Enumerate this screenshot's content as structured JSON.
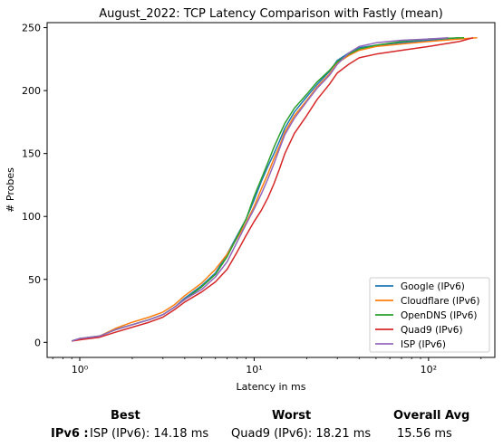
{
  "chart_data": {
    "type": "line",
    "title": "August_2022: TCP Latency Comparison with Fastly (mean)",
    "xlabel": "Latency in ms",
    "ylabel": "# Probes",
    "xscale": "log",
    "xlim": [
      0.65,
      240
    ],
    "ylim": [
      -12,
      254
    ],
    "xticks": [
      {
        "value": 1,
        "label": "10⁰"
      },
      {
        "value": 10,
        "label": "10¹"
      },
      {
        "value": 100,
        "label": "10²"
      }
    ],
    "yticks": [
      0,
      50,
      100,
      150,
      200,
      250
    ],
    "grid": false,
    "legend": "bottom-right",
    "series": [
      {
        "name": "Google (IPv6)",
        "color": "#1f77b4",
        "x": [
          0.9,
          1.0,
          1.3,
          1.6,
          2.0,
          2.5,
          3.0,
          3.5,
          4.0,
          5.0,
          6.0,
          7.0,
          8.0,
          9.0,
          10.0,
          11.0,
          12.0,
          13.0,
          14.0,
          15.0,
          17.0,
          20.0,
          23.0,
          27.0,
          30.0,
          35.0,
          40.0,
          50.0,
          70.0,
          100.0,
          150.0
        ],
        "y": [
          1,
          3,
          5,
          10,
          14,
          18,
          22,
          28,
          35,
          45,
          55,
          70,
          85,
          98,
          113,
          128,
          140,
          150,
          160,
          170,
          183,
          195,
          205,
          215,
          224,
          230,
          234,
          236,
          238,
          240,
          242
        ]
      },
      {
        "name": "Cloudflare (IPv6)",
        "color": "#ff7f0e",
        "x": [
          0.9,
          1.0,
          1.3,
          1.6,
          2.0,
          2.5,
          3.0,
          3.5,
          4.0,
          5.0,
          6.0,
          7.0,
          8.0,
          9.0,
          10.0,
          11.0,
          12.0,
          13.0,
          14.0,
          15.0,
          17.0,
          20.0,
          23.0,
          27.0,
          30.0,
          35.0,
          40.0,
          50.0,
          70.0,
          100.0,
          150.0,
          190.0
        ],
        "y": [
          1,
          2,
          5,
          11,
          16,
          20,
          24,
          30,
          37,
          47,
          58,
          70,
          83,
          95,
          108,
          122,
          134,
          146,
          156,
          167,
          180,
          192,
          203,
          213,
          222,
          228,
          232,
          235,
          237,
          239,
          241,
          242
        ]
      },
      {
        "name": "OpenDNS (IPv6)",
        "color": "#2ca02c",
        "x": [
          0.9,
          1.0,
          1.3,
          1.6,
          2.0,
          2.5,
          3.0,
          3.5,
          4.0,
          5.0,
          6.0,
          7.0,
          8.0,
          9.0,
          10.0,
          11.0,
          12.0,
          13.0,
          14.0,
          15.0,
          17.0,
          20.0,
          23.0,
          27.0,
          30.0,
          35.0,
          40.0,
          50.0,
          70.0,
          100.0,
          160.0
        ],
        "y": [
          1,
          3,
          5,
          10,
          14,
          18,
          22,
          28,
          34,
          44,
          54,
          68,
          84,
          98,
          116,
          130,
          143,
          155,
          165,
          174,
          186,
          197,
          207,
          216,
          223,
          229,
          233,
          236,
          239,
          241,
          242
        ]
      },
      {
        "name": "Quad9 (IPv6)",
        "color": "#d62728",
        "x": [
          0.9,
          1.0,
          1.3,
          1.6,
          2.0,
          2.5,
          3.0,
          3.5,
          4.0,
          5.0,
          6.0,
          7.0,
          8.0,
          9.0,
          10.0,
          11.0,
          12.0,
          13.0,
          14.0,
          15.0,
          17.0,
          20.0,
          23.0,
          27.0,
          30.0,
          35.0,
          40.0,
          50.0,
          70.0,
          100.0,
          150.0,
          180.0
        ],
        "y": [
          1,
          2,
          4,
          8,
          12,
          16,
          20,
          26,
          32,
          40,
          48,
          58,
          72,
          85,
          96,
          105,
          115,
          126,
          138,
          150,
          166,
          180,
          193,
          205,
          214,
          221,
          226,
          229,
          232,
          235,
          239,
          242
        ]
      },
      {
        "name": "ISP (IPv6)",
        "color": "#9467bd",
        "x": [
          0.9,
          1.0,
          1.3,
          1.6,
          2.0,
          2.5,
          3.0,
          3.5,
          4.0,
          5.0,
          6.0,
          7.0,
          8.0,
          9.0,
          10.0,
          11.0,
          12.0,
          13.0,
          14.0,
          15.0,
          17.0,
          20.0,
          23.0,
          27.0,
          30.0,
          35.0,
          40.0,
          50.0,
          70.0,
          100.0,
          130.0
        ],
        "y": [
          1,
          3,
          5,
          10,
          14,
          18,
          22,
          28,
          34,
          42,
          52,
          64,
          80,
          94,
          106,
          118,
          130,
          142,
          154,
          165,
          178,
          191,
          202,
          212,
          221,
          230,
          235,
          238,
          240,
          241,
          242
        ]
      }
    ]
  },
  "stats": {
    "headers": {
      "best": "Best",
      "worst": "Worst",
      "avg": "Overall Avg"
    },
    "row_label": "IPv6 :",
    "best": "ISP (IPv6): 14.18 ms",
    "worst": "Quad9 (IPv6): 18.21 ms",
    "avg": "15.56 ms"
  }
}
